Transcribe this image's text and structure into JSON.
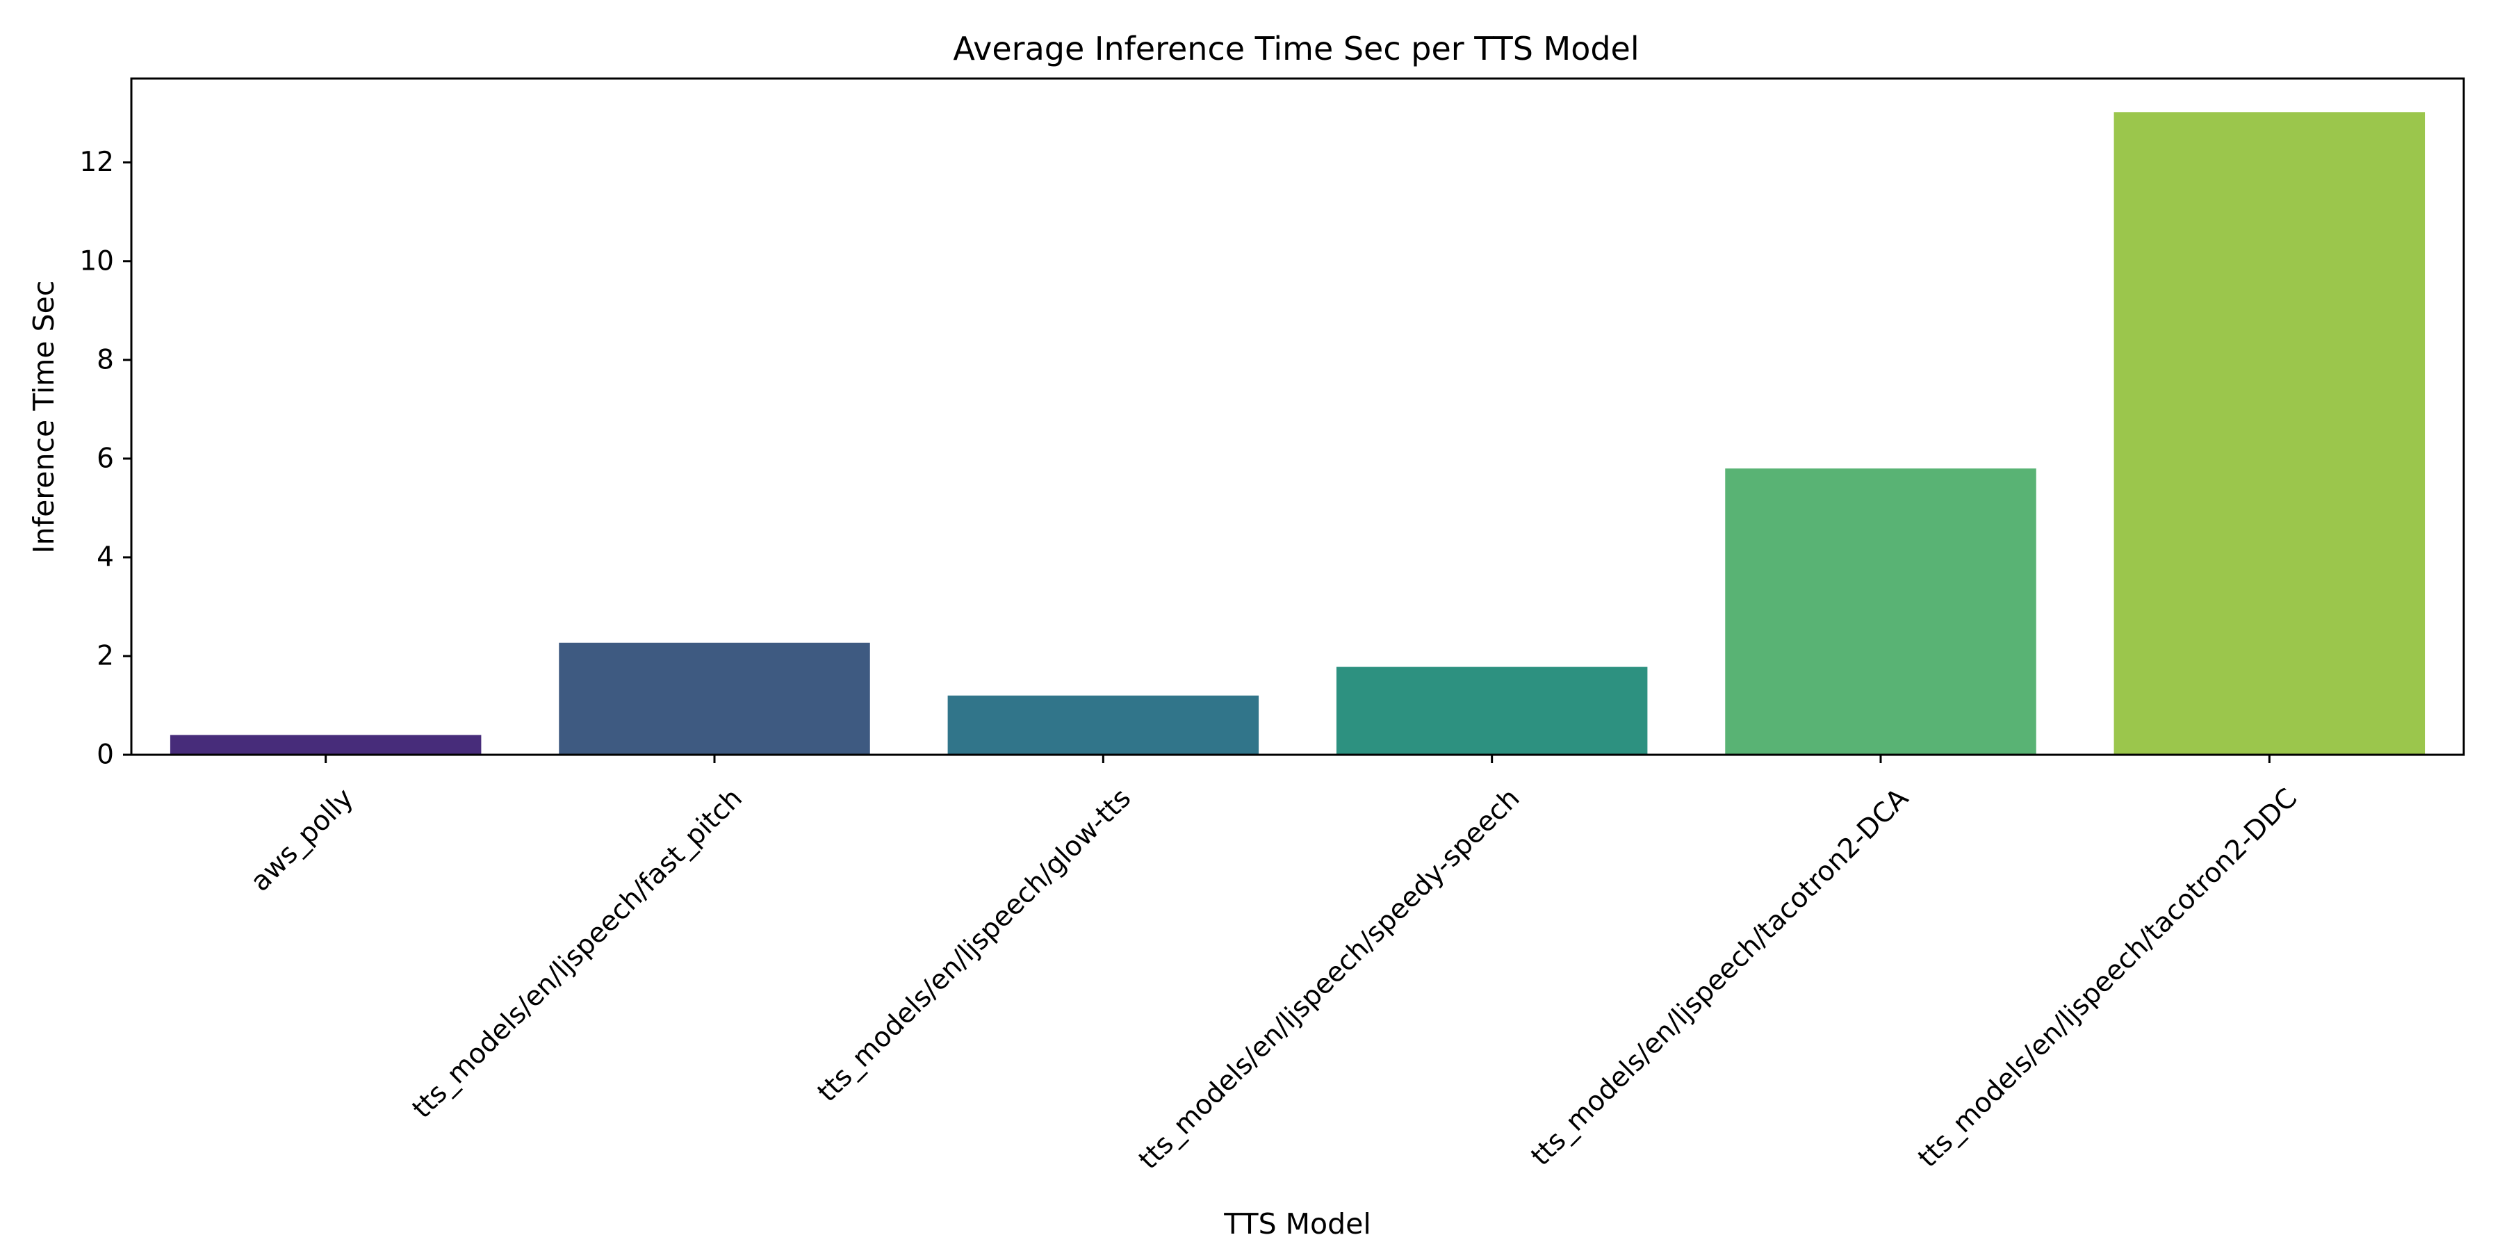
{
  "chart_data": {
    "type": "bar",
    "title": "Average Inference Time Sec per TTS Model",
    "xlabel": "TTS Model",
    "ylabel": "Inference Time Sec",
    "categories": [
      "aws_polly",
      "tts_models/en/ljspeech/fast_pitch",
      "tts_models/en/ljspeech/glow-tts",
      "tts_models/en/ljspeech/speedy-speech",
      "tts_models/en/ljspeech/tacotron2-DCA",
      "tts_models/en/ljspeech/tacotron2-DDC"
    ],
    "values": [
      0.4,
      2.27,
      1.2,
      1.78,
      5.8,
      13.02
    ],
    "colors": [
      "#472c7a",
      "#3e5a81",
      "#31758a",
      "#2d9180",
      "#59b374",
      "#9bc64c"
    ],
    "ylim": [
      0,
      13.7
    ],
    "yticks": [
      "0",
      "2",
      "4",
      "6",
      "8",
      "10",
      "12"
    ],
    "grid": false,
    "legend": "none"
  }
}
